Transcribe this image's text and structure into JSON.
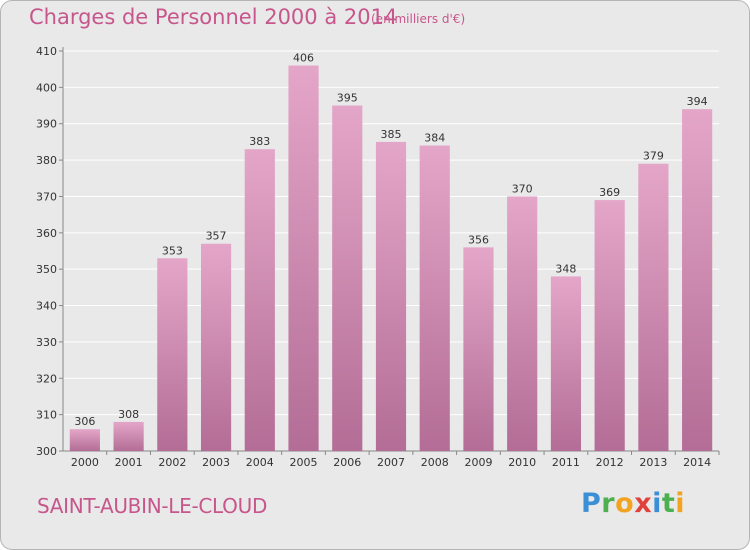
{
  "title": "Charges de Personnel 2000 à 2014",
  "subtitle": "(en milliers d'€)",
  "commune": "SAINT-AUBIN-LE-CLOUD",
  "logo": {
    "letters": [
      {
        "ch": "P",
        "color": "#3a8fd6"
      },
      {
        "ch": "r",
        "color": "#4caf50"
      },
      {
        "ch": "o",
        "color": "#f2a320"
      },
      {
        "ch": "x",
        "color": "#e0413a"
      },
      {
        "ch": "i",
        "color": "#3a8fd6"
      },
      {
        "ch": "t",
        "color": "#4caf50"
      },
      {
        "ch": "i",
        "color": "#f2a320"
      }
    ]
  },
  "colors": {
    "accent": "#c7568c",
    "bar_top": "#e4a6c8",
    "bar_bottom": "#b36d96",
    "grid": "#ffffff",
    "background": "#e9e9e9"
  },
  "chart_data": {
    "type": "bar",
    "categories": [
      "2000",
      "2001",
      "2002",
      "2003",
      "2004",
      "2005",
      "2006",
      "2007",
      "2008",
      "2009",
      "2010",
      "2011",
      "2012",
      "2013",
      "2014"
    ],
    "values": [
      306,
      308,
      353,
      357,
      383,
      406,
      395,
      385,
      384,
      356,
      370,
      348,
      369,
      379,
      394
    ],
    "ylim": [
      300,
      410
    ],
    "yticks": [
      300,
      310,
      320,
      330,
      340,
      350,
      360,
      370,
      380,
      390,
      400,
      410
    ],
    "grid": true,
    "data_labels": true
  }
}
